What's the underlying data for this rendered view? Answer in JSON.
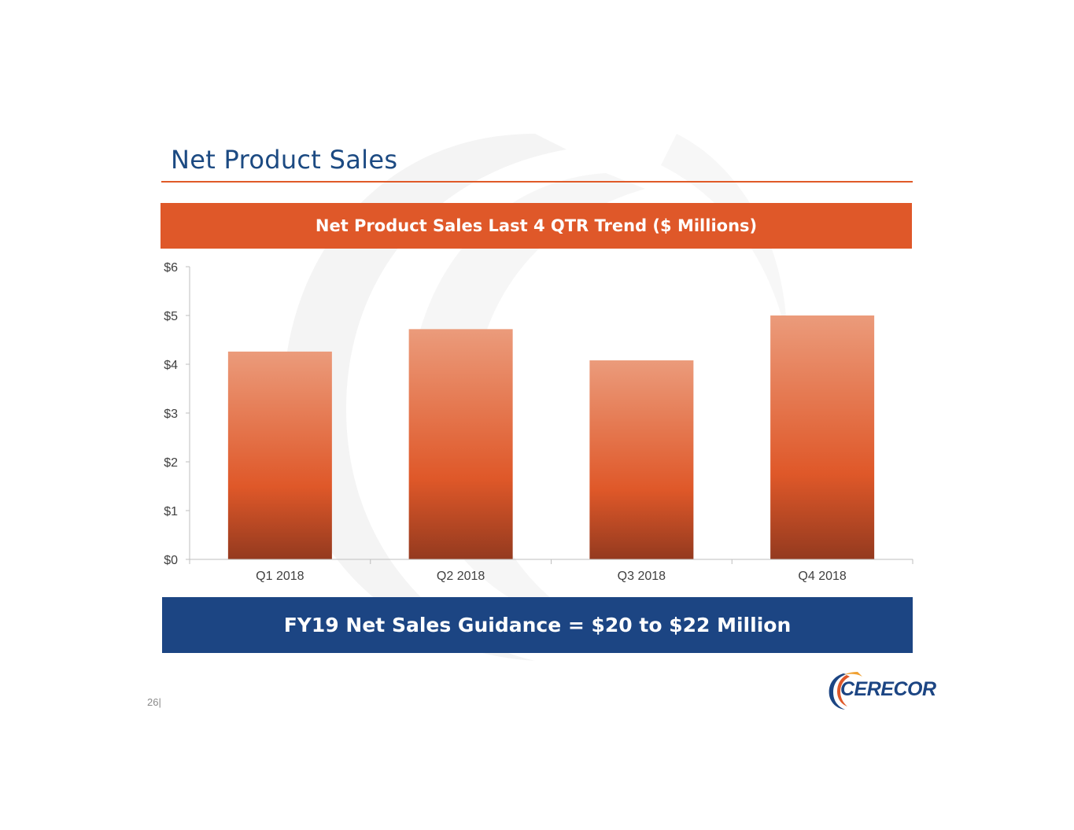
{
  "slide": {
    "title": "Net Product Sales",
    "chart_banner": "Net Product Sales Last 4 QTR Trend ($ Millions)",
    "guidance": "FY19 Net Sales Guidance = $20 to $22 Million",
    "page_number": "26|",
    "logo_text": "CERECOR"
  },
  "colors": {
    "title": "#1c4a82",
    "accent_orange": "#df5829",
    "accent_blue": "#1c4583",
    "bar_top": "#eb9b7b",
    "bar_mid": "#df5829",
    "bar_bottom": "#943a1f"
  },
  "chart_data": {
    "type": "bar",
    "categories": [
      "Q1 2018",
      "Q2 2018",
      "Q3 2018",
      "Q4 2018"
    ],
    "values": [
      4.26,
      4.72,
      4.08,
      5.0
    ],
    "ylim": [
      0,
      6
    ],
    "yticks": [
      0,
      1,
      2,
      3,
      4,
      5,
      6
    ],
    "ytick_labels": [
      "$0",
      "$1",
      "$2",
      "$3",
      "$4",
      "$5",
      "$6"
    ],
    "title": "Net Product Sales Last 4 QTR Trend ($ Millions)",
    "xlabel": "",
    "ylabel": "",
    "grid": false,
    "legend": "none"
  }
}
